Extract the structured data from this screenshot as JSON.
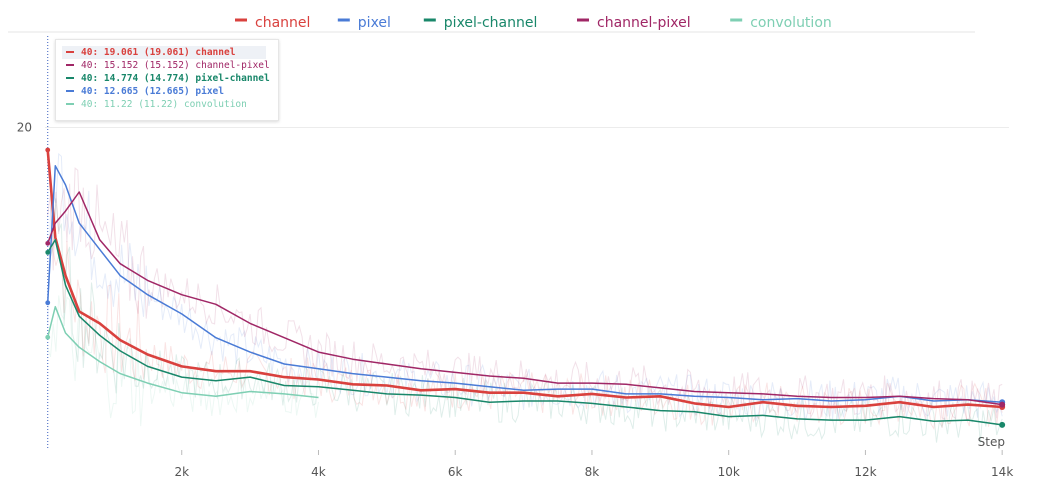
{
  "chart_data": {
    "type": "line",
    "xlabel": "Step",
    "x_ticks": [
      {
        "value": 2000,
        "label": "2k"
      },
      {
        "value": 4000,
        "label": "4k"
      },
      {
        "value": 6000,
        "label": "6k"
      },
      {
        "value": 8000,
        "label": "8k"
      },
      {
        "value": 10000,
        "label": "10k"
      },
      {
        "value": 12000,
        "label": "12k"
      },
      {
        "value": 14000,
        "label": "14k"
      }
    ],
    "y_ticks": [
      {
        "value": 20,
        "label": "20"
      }
    ],
    "xlim": [
      0,
      14100
    ],
    "ylim": [
      6.5,
      24
    ],
    "grid": true,
    "legend_position": "top",
    "hover_step": 40,
    "series": [
      {
        "name": "channel",
        "color": "#d9413e",
        "smoothing": 0.6,
        "x": [
          40,
          150,
          300,
          500,
          800,
          1100,
          1500,
          2000,
          2500,
          3000,
          3500,
          4000,
          4500,
          5000,
          5500,
          6000,
          6500,
          7000,
          7500,
          8000,
          8500,
          9000,
          9500,
          10000,
          10500,
          11000,
          11500,
          12000,
          12500,
          13000,
          13500,
          14000
        ],
        "y": [
          19.061,
          15.4,
          13.8,
          12.3,
          11.8,
          11.1,
          10.5,
          10.0,
          9.8,
          9.8,
          9.55,
          9.45,
          9.25,
          9.2,
          9.0,
          9.05,
          8.9,
          8.9,
          8.75,
          8.85,
          8.7,
          8.75,
          8.45,
          8.3,
          8.5,
          8.35,
          8.3,
          8.35,
          8.5,
          8.3,
          8.4,
          8.3
        ]
      },
      {
        "name": "pixel",
        "color": "#4a7bd6",
        "smoothing": 0.6,
        "x": [
          40,
          150,
          300,
          500,
          800,
          1100,
          1500,
          2000,
          2500,
          3000,
          3500,
          4000,
          4500,
          5000,
          5500,
          6000,
          6500,
          7000,
          7500,
          8000,
          8500,
          9000,
          9500,
          10000,
          10500,
          11000,
          11500,
          12000,
          12500,
          13000,
          13500,
          14000
        ],
        "y": [
          12.665,
          18.4,
          17.6,
          16.0,
          14.9,
          13.8,
          13.0,
          12.2,
          11.2,
          10.6,
          10.1,
          9.9,
          9.7,
          9.55,
          9.4,
          9.3,
          9.15,
          9.0,
          9.05,
          9.05,
          8.85,
          8.85,
          8.75,
          8.7,
          8.6,
          8.65,
          8.55,
          8.6,
          8.75,
          8.55,
          8.6,
          8.5
        ]
      },
      {
        "name": "pixel-channel",
        "color": "#19876a",
        "smoothing": 0.6,
        "x": [
          40,
          150,
          300,
          500,
          800,
          1100,
          1500,
          2000,
          2500,
          3000,
          3500,
          4000,
          4500,
          5000,
          5500,
          6000,
          6500,
          7000,
          7500,
          8000,
          8500,
          9000,
          9500,
          10000,
          10500,
          11000,
          11500,
          12000,
          12500,
          13000,
          13500,
          14000
        ],
        "y": [
          14.774,
          15.3,
          13.4,
          12.1,
          11.3,
          10.65,
          10.0,
          9.55,
          9.4,
          9.55,
          9.2,
          9.15,
          9.0,
          8.85,
          8.8,
          8.7,
          8.5,
          8.55,
          8.55,
          8.45,
          8.3,
          8.15,
          8.1,
          7.9,
          7.95,
          7.8,
          7.75,
          7.75,
          7.9,
          7.7,
          7.75,
          7.55
        ]
      },
      {
        "name": "channel-pixel",
        "color": "#a02766",
        "smoothing": 0.6,
        "x": [
          40,
          150,
          300,
          500,
          800,
          1100,
          1500,
          2000,
          2500,
          3000,
          3500,
          4000,
          4500,
          5000,
          5500,
          6000,
          6500,
          7000,
          7500,
          8000,
          8500,
          9000,
          9500,
          10000,
          10500,
          11000,
          11500,
          12000,
          12500,
          13000,
          13500,
          14000
        ],
        "y": [
          15.152,
          16.0,
          16.5,
          17.3,
          15.3,
          14.3,
          13.6,
          13.0,
          12.6,
          11.8,
          11.2,
          10.6,
          10.3,
          10.1,
          9.9,
          9.75,
          9.6,
          9.5,
          9.3,
          9.3,
          9.25,
          9.1,
          8.95,
          8.9,
          8.85,
          8.75,
          8.7,
          8.7,
          8.75,
          8.65,
          8.6,
          8.4
        ]
      },
      {
        "name": "convolution",
        "color": "#7ecfb3",
        "smoothing": 0.6,
        "x": [
          40,
          150,
          300,
          500,
          800,
          1100,
          1500,
          2000,
          2500,
          3000,
          3500,
          4000
        ],
        "y": [
          11.22,
          12.5,
          11.4,
          10.8,
          10.2,
          9.7,
          9.3,
          8.9,
          8.75,
          8.95,
          8.85,
          8.7
        ]
      }
    ],
    "tooltip_rows": [
      {
        "text": "40: 19.061 (19.061) channel",
        "color": "#d9413e",
        "bold": true
      },
      {
        "text": "40: 15.152 (15.152) channel-pixel",
        "color": "#a02766",
        "bold": false
      },
      {
        "text": "40: 14.774 (14.774) pixel-channel",
        "color": "#19876a",
        "bold": true
      },
      {
        "text": "40: 12.665 (12.665) pixel",
        "color": "#4a7bd6",
        "bold": true
      },
      {
        "text": "40: 11.22 (11.22) convolution",
        "color": "#7ecfb3",
        "bold": false
      }
    ]
  }
}
